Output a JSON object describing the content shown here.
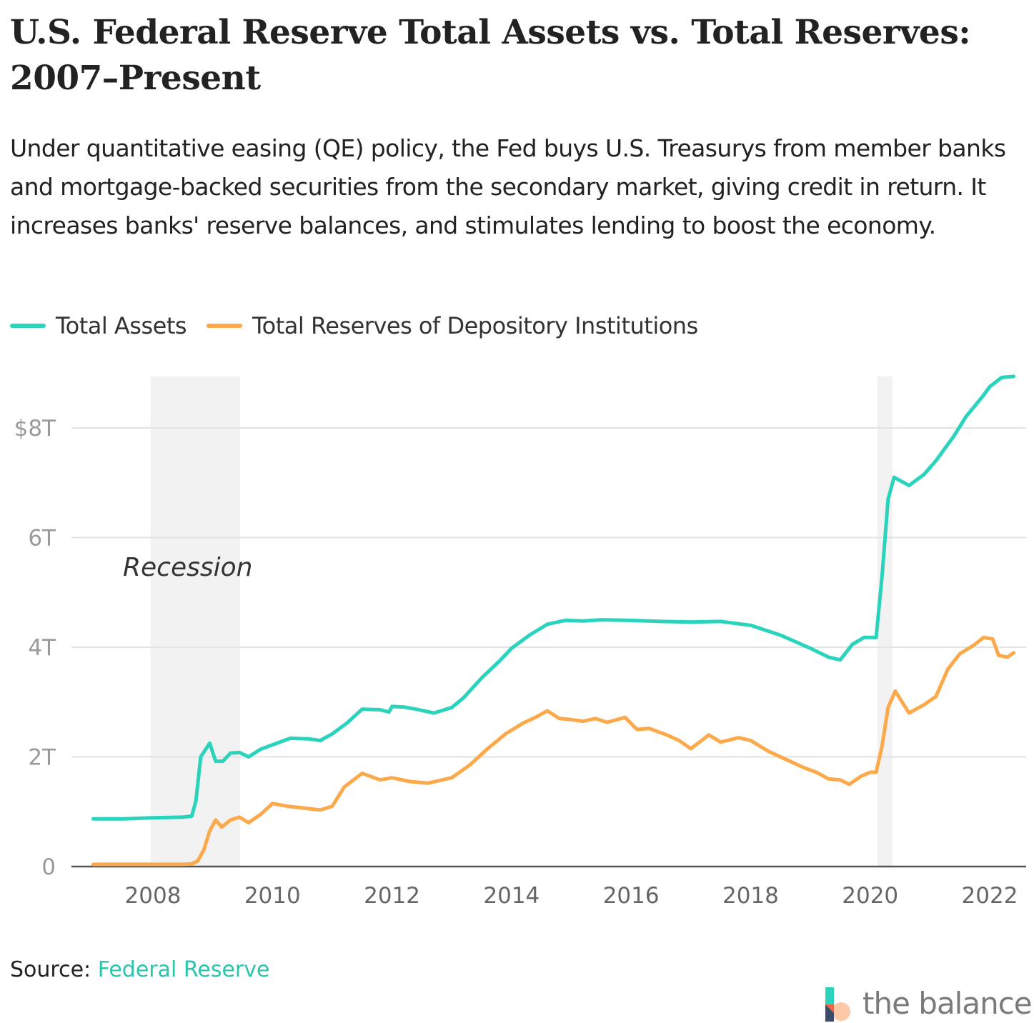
{
  "title": "U.S. Federal Reserve Total Assets vs. Total Reserves: 2007–Present",
  "subtitle": "Under quantitative easing (QE) policy, the Fed buys U.S. Treasurys from member banks and mortgage-backed securities from the secondary market, giving credit in return. It increases banks' reserve balances, and stimulates lending to boost the economy.",
  "legend": [
    {
      "label": "Total Assets",
      "color": "#2ad3bb"
    },
    {
      "label": "Total Reserves of Depository Institutions",
      "color": "#fba94b"
    }
  ],
  "source": {
    "label": "Source:",
    "link_text": "Federal Reserve"
  },
  "brand": {
    "name": "the balance"
  },
  "chart_data": {
    "type": "line",
    "title": "U.S. Federal Reserve Total Assets vs. Total Reserves: 2007–Present",
    "x_ticks": [
      "2008",
      "2010",
      "2012",
      "2014",
      "2016",
      "2018",
      "2020",
      "2022"
    ],
    "y_ticks": [
      "0",
      "2T",
      "4T",
      "6T",
      "$8T"
    ],
    "xlim": [
      2007.0,
      2022.6
    ],
    "ylim": [
      0,
      9.0
    ],
    "grid": true,
    "legend_position": "top-left",
    "recessions": [
      {
        "start": 2007.96,
        "end": 2009.46,
        "label": "Recession"
      },
      {
        "start": 2020.12,
        "end": 2020.37,
        "label": ""
      }
    ],
    "series": [
      {
        "name": "Total Assets",
        "color": "#2ad3bb",
        "points": [
          [
            2007.0,
            0.87
          ],
          [
            2007.5,
            0.87
          ],
          [
            2008.0,
            0.89
          ],
          [
            2008.5,
            0.9
          ],
          [
            2008.65,
            0.92
          ],
          [
            2008.72,
            1.2
          ],
          [
            2008.8,
            2.0
          ],
          [
            2008.95,
            2.25
          ],
          [
            2009.05,
            1.92
          ],
          [
            2009.17,
            1.92
          ],
          [
            2009.3,
            2.07
          ],
          [
            2009.45,
            2.08
          ],
          [
            2009.6,
            2.0
          ],
          [
            2009.8,
            2.14
          ],
          [
            2010.0,
            2.22
          ],
          [
            2010.3,
            2.34
          ],
          [
            2010.6,
            2.33
          ],
          [
            2010.8,
            2.3
          ],
          [
            2011.0,
            2.42
          ],
          [
            2011.25,
            2.62
          ],
          [
            2011.5,
            2.87
          ],
          [
            2011.8,
            2.86
          ],
          [
            2011.95,
            2.82
          ],
          [
            2012.0,
            2.92
          ],
          [
            2012.2,
            2.91
          ],
          [
            2012.4,
            2.87
          ],
          [
            2012.7,
            2.8
          ],
          [
            2013.0,
            2.9
          ],
          [
            2013.2,
            3.08
          ],
          [
            2013.5,
            3.44
          ],
          [
            2013.8,
            3.75
          ],
          [
            2014.0,
            3.98
          ],
          [
            2014.3,
            4.22
          ],
          [
            2014.6,
            4.42
          ],
          [
            2014.9,
            4.49
          ],
          [
            2015.2,
            4.48
          ],
          [
            2015.5,
            4.5
          ],
          [
            2016.0,
            4.49
          ],
          [
            2016.5,
            4.47
          ],
          [
            2017.0,
            4.46
          ],
          [
            2017.5,
            4.47
          ],
          [
            2018.0,
            4.4
          ],
          [
            2018.5,
            4.22
          ],
          [
            2019.0,
            3.98
          ],
          [
            2019.3,
            3.82
          ],
          [
            2019.5,
            3.77
          ],
          [
            2019.7,
            4.05
          ],
          [
            2019.9,
            4.18
          ],
          [
            2020.1,
            4.18
          ],
          [
            2020.2,
            5.3
          ],
          [
            2020.3,
            6.7
          ],
          [
            2020.4,
            7.1
          ],
          [
            2020.65,
            6.95
          ],
          [
            2020.9,
            7.15
          ],
          [
            2021.1,
            7.4
          ],
          [
            2021.4,
            7.85
          ],
          [
            2021.6,
            8.2
          ],
          [
            2021.9,
            8.6
          ],
          [
            2022.0,
            8.75
          ],
          [
            2022.2,
            8.92
          ],
          [
            2022.4,
            8.94
          ]
        ]
      },
      {
        "name": "Total Reserves of Depository Institutions",
        "color": "#fba94b",
        "points": [
          [
            2007.0,
            0.04
          ],
          [
            2007.5,
            0.04
          ],
          [
            2008.0,
            0.04
          ],
          [
            2008.5,
            0.04
          ],
          [
            2008.65,
            0.05
          ],
          [
            2008.75,
            0.1
          ],
          [
            2008.85,
            0.3
          ],
          [
            2008.95,
            0.65
          ],
          [
            2009.05,
            0.85
          ],
          [
            2009.15,
            0.72
          ],
          [
            2009.3,
            0.85
          ],
          [
            2009.45,
            0.9
          ],
          [
            2009.6,
            0.8
          ],
          [
            2009.8,
            0.95
          ],
          [
            2010.0,
            1.15
          ],
          [
            2010.25,
            1.1
          ],
          [
            2010.5,
            1.07
          ],
          [
            2010.8,
            1.03
          ],
          [
            2011.0,
            1.1
          ],
          [
            2011.2,
            1.45
          ],
          [
            2011.5,
            1.7
          ],
          [
            2011.8,
            1.58
          ],
          [
            2012.0,
            1.62
          ],
          [
            2012.3,
            1.55
          ],
          [
            2012.6,
            1.52
          ],
          [
            2013.0,
            1.62
          ],
          [
            2013.3,
            1.85
          ],
          [
            2013.6,
            2.15
          ],
          [
            2013.9,
            2.42
          ],
          [
            2014.2,
            2.62
          ],
          [
            2014.4,
            2.72
          ],
          [
            2014.6,
            2.84
          ],
          [
            2014.8,
            2.7
          ],
          [
            2015.0,
            2.68
          ],
          [
            2015.2,
            2.65
          ],
          [
            2015.4,
            2.7
          ],
          [
            2015.6,
            2.63
          ],
          [
            2015.9,
            2.72
          ],
          [
            2016.1,
            2.5
          ],
          [
            2016.3,
            2.52
          ],
          [
            2016.6,
            2.4
          ],
          [
            2016.8,
            2.3
          ],
          [
            2017.0,
            2.15
          ],
          [
            2017.3,
            2.4
          ],
          [
            2017.5,
            2.27
          ],
          [
            2017.8,
            2.35
          ],
          [
            2018.0,
            2.3
          ],
          [
            2018.3,
            2.1
          ],
          [
            2018.6,
            1.95
          ],
          [
            2018.9,
            1.8
          ],
          [
            2019.1,
            1.72
          ],
          [
            2019.3,
            1.6
          ],
          [
            2019.5,
            1.58
          ],
          [
            2019.65,
            1.5
          ],
          [
            2019.85,
            1.65
          ],
          [
            2020.0,
            1.72
          ],
          [
            2020.1,
            1.72
          ],
          [
            2020.2,
            2.2
          ],
          [
            2020.3,
            2.9
          ],
          [
            2020.42,
            3.2
          ],
          [
            2020.65,
            2.8
          ],
          [
            2020.9,
            2.95
          ],
          [
            2021.1,
            3.1
          ],
          [
            2021.3,
            3.6
          ],
          [
            2021.5,
            3.88
          ],
          [
            2021.75,
            4.05
          ],
          [
            2021.9,
            4.18
          ],
          [
            2022.05,
            4.15
          ],
          [
            2022.15,
            3.85
          ],
          [
            2022.3,
            3.82
          ],
          [
            2022.4,
            3.9
          ]
        ]
      }
    ]
  }
}
